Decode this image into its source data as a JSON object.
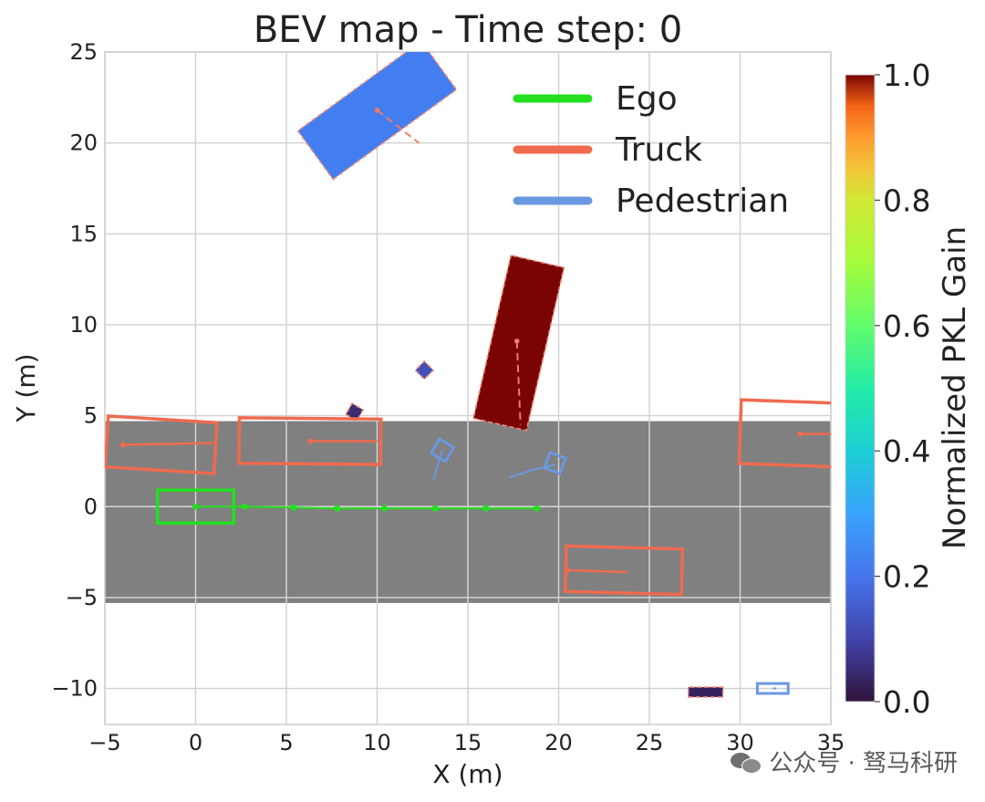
{
  "chart_data": {
    "type": "scatter",
    "title": "BEV map - Time step: 0",
    "xlabel": "X (m)",
    "ylabel": "Y (m)",
    "xlim": [
      -5,
      35
    ],
    "ylim": [
      -12,
      25
    ],
    "xticks": [
      -5,
      0,
      5,
      10,
      15,
      20,
      25,
      30,
      35
    ],
    "yticks": [
      -10,
      -5,
      0,
      5,
      10,
      15,
      20,
      25
    ],
    "grid": true,
    "legend": {
      "position": "top-right",
      "entries": [
        {
          "label": "Ego",
          "color": "#22e01e"
        },
        {
          "label": "Truck",
          "color": "#ef6a4e"
        },
        {
          "label": "Pedestrian",
          "color": "#6a98e0"
        }
      ]
    },
    "colorbar": {
      "label": "Normalized PKL Gain",
      "range": [
        0.0,
        1.0
      ],
      "ticks": [
        "0.0",
        "0.2",
        "0.4",
        "0.6",
        "0.8",
        "1.0"
      ],
      "colormap": "turbo"
    },
    "road": {
      "y_range": [
        -5.3,
        4.7
      ],
      "x_range": [
        -5,
        35
      ],
      "color": "#808080"
    },
    "ego": {
      "box": {
        "cx": 0,
        "cy": 0,
        "length": 4.2,
        "width": 1.8,
        "heading": 0
      },
      "trajectory": [
        [
          0,
          0
        ],
        [
          2.7,
          0
        ],
        [
          5.4,
          -0.05
        ],
        [
          7.8,
          -0.1
        ],
        [
          10.4,
          -0.1
        ],
        [
          13.2,
          -0.1
        ],
        [
          16.0,
          -0.1
        ],
        [
          18.8,
          -0.1
        ]
      ]
    },
    "trucks": [
      {
        "cx": -1.9,
        "cy": 3.4,
        "length": 6.0,
        "width": 2.8,
        "heading": 3.5,
        "traj": [
          [
            -4,
            3.4
          ],
          [
            1.0,
            3.5
          ]
        ]
      },
      {
        "cx": 6.3,
        "cy": 3.6,
        "length": 7.8,
        "width": 2.5,
        "heading": 0.5,
        "traj": [
          [
            6.3,
            3.6
          ],
          [
            10.0,
            3.6
          ]
        ]
      },
      {
        "cx": 33.5,
        "cy": 4.0,
        "length": 7.0,
        "width": 3.5,
        "heading": 2.0,
        "traj": [
          [
            33.3,
            4.0
          ],
          [
            35,
            4.0
          ]
        ]
      },
      {
        "cx": 23.6,
        "cy": -3.5,
        "length": 6.4,
        "width": 2.5,
        "heading": 1.5,
        "traj": [
          [
            20.5,
            -3.5
          ],
          [
            23.8,
            -3.6
          ]
        ]
      }
    ],
    "pedestrians": [
      {
        "cx": 13.6,
        "cy": 3.1,
        "size": 0.9,
        "heading": 30,
        "traj": [
          [
            13.6,
            3.1
          ],
          [
            13.1,
            1.5
          ]
        ]
      },
      {
        "cx": 19.8,
        "cy": 2.4,
        "size": 0.9,
        "heading": 20,
        "traj": [
          [
            19.8,
            2.3
          ],
          [
            18.5,
            2.0
          ],
          [
            17.3,
            1.6
          ]
        ]
      },
      {
        "cx": 31.8,
        "cy": -10.0,
        "size": 1.7,
        "heading": 0,
        "traj": [
          [
            31.8,
            -10.0
          ],
          [
            32.0,
            -10.0
          ]
        ]
      }
    ],
    "colored_objects": [
      {
        "cx": 17.8,
        "cy": 9.0,
        "length": 9.2,
        "width": 3.0,
        "heading": 103,
        "value": 1.0,
        "traj": [
          [
            17.7,
            9.1
          ],
          [
            17.9,
            4.5
          ]
        ]
      },
      {
        "cx": 10.0,
        "cy": 21.8,
        "length": 8.4,
        "width": 3.3,
        "heading": -36,
        "value": 0.22,
        "traj": [
          [
            10.0,
            21.8
          ],
          [
            12.3,
            20.0
          ]
        ]
      },
      {
        "cx": 8.75,
        "cy": 5.2,
        "size": 0.7,
        "heading": 30,
        "value": 0.05
      },
      {
        "cx": 12.6,
        "cy": 7.5,
        "size": 0.7,
        "heading": 45,
        "value": 0.12
      },
      {
        "cx": 28.1,
        "cy": -10.2,
        "length": 1.9,
        "width": 0.55,
        "heading": 0,
        "value": 0.03
      }
    ]
  },
  "watermark": {
    "text": "公众号 · 驽马科研"
  }
}
